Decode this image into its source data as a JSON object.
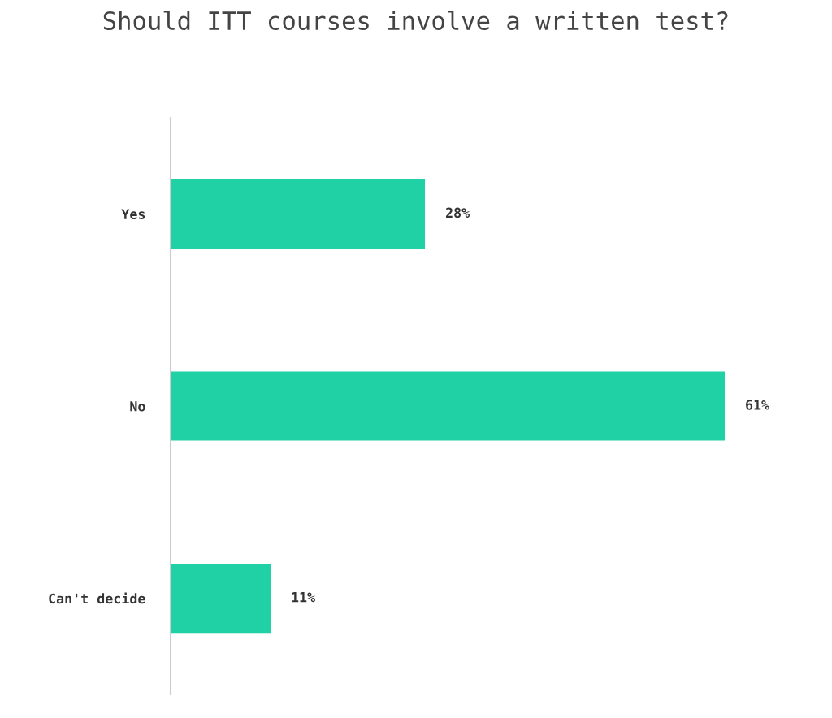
{
  "chart_data": {
    "type": "bar",
    "orientation": "horizontal",
    "title": "Should ITT courses involve a written test?",
    "categories": [
      "Yes",
      "No",
      "Can't decide"
    ],
    "values": [
      28,
      61,
      11
    ],
    "value_labels": [
      "28%",
      "61%",
      "11%"
    ],
    "color": "#1fd1a5",
    "grid": false,
    "legend": false
  }
}
